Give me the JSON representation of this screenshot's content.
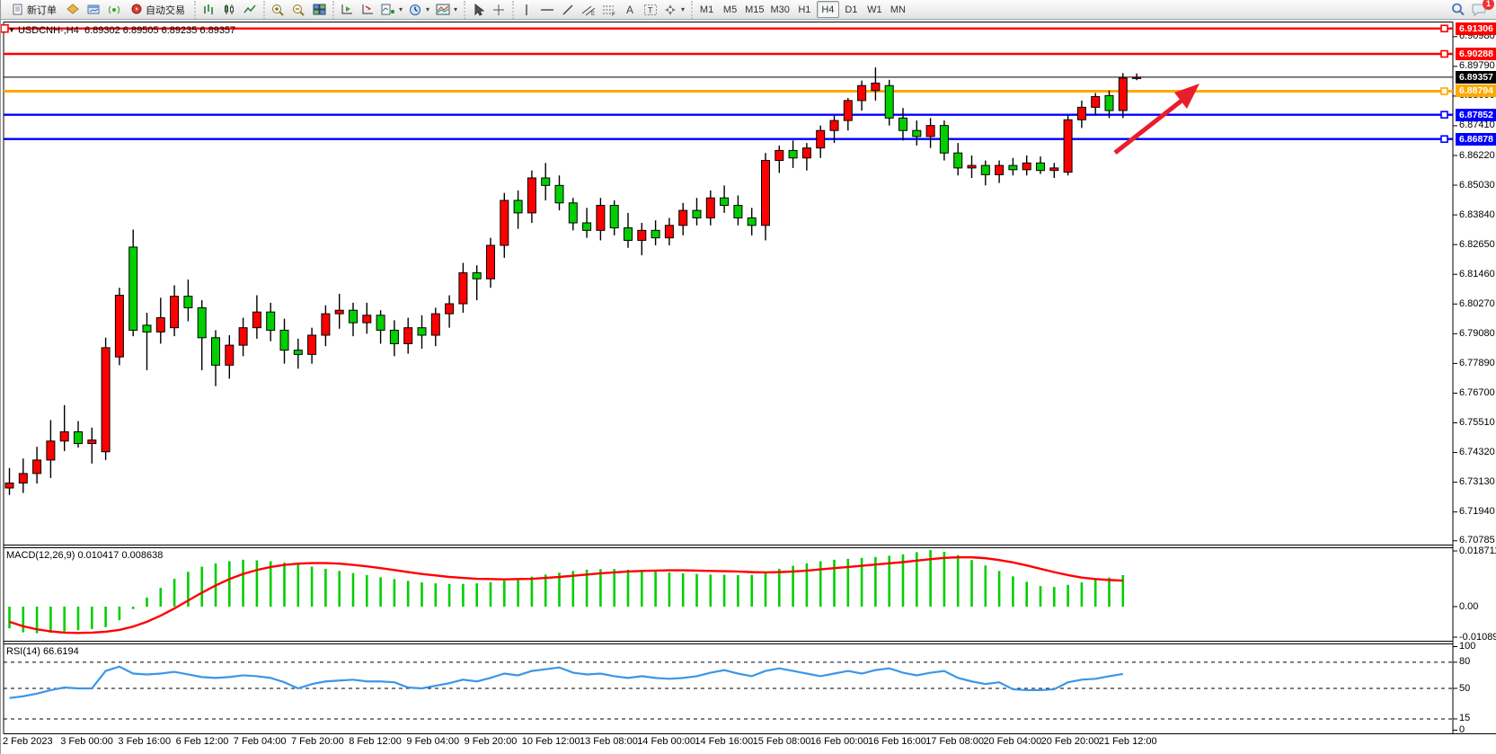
{
  "toolbar": {
    "new_order_label": "新订单",
    "autotrade_label": "自动交易",
    "icons": [
      "new-order-icon",
      "market-watch-icon",
      "chart-window-icon",
      "signal-icon",
      "autotrade-icon",
      "bar-chart-icon",
      "candlestick-icon",
      "line-chart-icon",
      "zoom-in-icon",
      "zoom-out-icon",
      "tile-windows-icon",
      "auto-scroll-icon",
      "chart-shift-icon",
      "indicators-icon",
      "periods-icon",
      "templates-icon",
      "cursor-icon",
      "crosshair-icon",
      "vertical-line-icon",
      "horizontal-line-icon",
      "trendline-icon",
      "channel-icon",
      "fibonacci-icon",
      "text-icon",
      "text-label-icon",
      "arrows-icon",
      "search-icon",
      "chat-icon"
    ],
    "timeframes": [
      {
        "label": "M1",
        "active": false
      },
      {
        "label": "M5",
        "active": false
      },
      {
        "label": "M15",
        "active": false
      },
      {
        "label": "M30",
        "active": false
      },
      {
        "label": "H1",
        "active": false
      },
      {
        "label": "H4",
        "active": true
      },
      {
        "label": "D1",
        "active": false
      },
      {
        "label": "W1",
        "active": false
      },
      {
        "label": "MN",
        "active": false
      }
    ],
    "notification_badge": "1"
  },
  "chart": {
    "title": {
      "symbol": "USDCNH-,H4",
      "quotes": "6.89302 6.89505 6.89235 6.89357"
    },
    "price_axis": {
      "ticks": [
        "6.90980",
        "6.89790",
        "6.88600",
        "6.87410",
        "6.86220",
        "6.85030",
        "6.83840",
        "6.82650",
        "6.81460",
        "6.80270",
        "6.79080",
        "6.77890",
        "6.76700",
        "6.75510",
        "6.74320",
        "6.73130",
        "6.71940",
        "6.70785"
      ],
      "tags": [
        {
          "value": "6.91306",
          "color": "#ff0000",
          "kind": "resistance-line"
        },
        {
          "value": "6.90288",
          "color": "#ff0000",
          "kind": "resistance-line"
        },
        {
          "value": "6.89357",
          "color": "#000000",
          "kind": "current-bid"
        },
        {
          "value": "6.88794",
          "color": "#ffa800",
          "kind": "pivot-line"
        },
        {
          "value": "6.87852",
          "color": "#0000ff",
          "kind": "support-line"
        },
        {
          "value": "6.86878",
          "color": "#0000ff",
          "kind": "support-line"
        }
      ]
    },
    "hlines": [
      {
        "price": 6.91306,
        "color": "#ff0000",
        "width": 2.4,
        "marker": true,
        "left_marker": true
      },
      {
        "price": 6.90288,
        "color": "#ff0000",
        "width": 2.4,
        "marker": true,
        "left_marker": false
      },
      {
        "price": 6.89357,
        "color": "#000000",
        "width": 1,
        "marker": false,
        "left_marker": false
      },
      {
        "price": 6.88794,
        "color": "#ffa800",
        "width": 3,
        "marker": true,
        "left_marker": false
      },
      {
        "price": 6.87852,
        "color": "#0000ff",
        "width": 2.4,
        "marker": true,
        "left_marker": false
      },
      {
        "price": 6.86878,
        "color": "#0000ff",
        "width": 2.4,
        "marker": true,
        "left_marker": false
      }
    ],
    "annotation": {
      "type": "trend-arrow",
      "direction": "up-right",
      "color": "#e81e2d"
    },
    "colors": {
      "bull": "#ff0000",
      "bear": "#00cf00",
      "outline": "#000000",
      "macd_hist": "#00cf00",
      "macd_signal": "#ff0000",
      "rsi_line": "#3c96e8"
    },
    "candles": [
      [
        6.729,
        6.737,
        6.7262,
        6.731
      ],
      [
        6.731,
        6.7408,
        6.727,
        6.7348
      ],
      [
        6.7348,
        6.7455,
        6.7308,
        6.7402
      ],
      [
        6.7402,
        6.7562,
        6.733,
        6.7478
      ],
      [
        6.7478,
        6.7622,
        6.7438,
        6.7515
      ],
      [
        6.7515,
        6.7558,
        6.7452,
        6.7468
      ],
      [
        6.7468,
        6.7532,
        6.7388,
        6.7482
      ],
      [
        6.7435,
        6.7892,
        6.7402,
        6.7852
      ],
      [
        6.7815,
        6.8092,
        6.7782,
        6.8062
      ],
      [
        6.8255,
        6.8325,
        6.7898,
        6.7922
      ],
      [
        6.7942,
        6.7992,
        6.7762,
        6.7915
      ],
      [
        6.7915,
        6.8052,
        6.7868,
        6.7972
      ],
      [
        6.7932,
        6.8102,
        6.7898,
        6.8058
      ],
      [
        6.8058,
        6.8125,
        6.7958,
        6.8012
      ],
      [
        6.8012,
        6.8042,
        6.7762,
        6.7892
      ],
      [
        6.7892,
        6.7922,
        6.7698,
        6.7782
      ],
      [
        6.7782,
        6.7902,
        6.7728,
        6.7862
      ],
      [
        6.7862,
        6.7972,
        6.7818,
        6.7932
      ],
      [
        6.7932,
        6.8062,
        6.7888,
        6.7995
      ],
      [
        6.7995,
        6.8032,
        6.7878,
        6.7922
      ],
      [
        6.7922,
        6.7968,
        6.7788,
        6.7842
      ],
      [
        6.7842,
        6.7888,
        6.7768,
        6.7825
      ],
      [
        6.7825,
        6.7932,
        6.7788,
        6.7902
      ],
      [
        6.7902,
        6.8022,
        6.7858,
        6.7988
      ],
      [
        6.7988,
        6.8068,
        6.7928,
        6.8002
      ],
      [
        6.8002,
        6.8032,
        6.7898,
        6.7952
      ],
      [
        6.7952,
        6.8032,
        6.7908,
        6.7982
      ],
      [
        6.7982,
        6.8002,
        6.7868,
        6.7922
      ],
      [
        6.7922,
        6.7962,
        6.7818,
        6.7868
      ],
      [
        6.7868,
        6.7972,
        6.7828,
        6.7932
      ],
      [
        6.7932,
        6.7982,
        6.7848,
        6.7902
      ],
      [
        6.7902,
        6.8012,
        6.7858,
        6.7988
      ],
      [
        6.7988,
        6.8062,
        6.7932,
        6.8028
      ],
      [
        6.8028,
        6.8192,
        6.7992,
        6.8152
      ],
      [
        6.8152,
        6.8182,
        6.8042,
        6.8128
      ],
      [
        6.8128,
        6.8292,
        6.8092,
        6.8262
      ],
      [
        6.8262,
        6.8472,
        6.8212,
        6.8442
      ],
      [
        6.8442,
        6.8482,
        6.8328,
        6.8392
      ],
      [
        6.8392,
        6.8562,
        6.8352,
        6.8532
      ],
      [
        6.8532,
        6.8592,
        6.8442,
        6.8502
      ],
      [
        6.8502,
        6.8542,
        6.8402,
        6.8432
      ],
      [
        6.8432,
        6.8452,
        6.8322,
        6.8352
      ],
      [
        6.8352,
        6.8412,
        6.8292,
        6.8322
      ],
      [
        6.8322,
        6.8452,
        6.8282,
        6.8422
      ],
      [
        6.8422,
        6.8442,
        6.8302,
        6.8332
      ],
      [
        6.8332,
        6.8392,
        6.8252,
        6.8282
      ],
      [
        6.8282,
        6.8352,
        6.8222,
        6.8322
      ],
      [
        6.8322,
        6.8362,
        6.8262,
        6.8292
      ],
      [
        6.8292,
        6.8372,
        6.8262,
        6.8342
      ],
      [
        6.8342,
        6.8432,
        6.8302,
        6.8402
      ],
      [
        6.8402,
        6.8452,
        6.8342,
        6.8372
      ],
      [
        6.8372,
        6.8482,
        6.8342,
        6.8452
      ],
      [
        6.8452,
        6.8502,
        6.8392,
        6.8422
      ],
      [
        6.8422,
        6.8462,
        6.8342,
        6.8372
      ],
      [
        6.8372,
        6.8412,
        6.8302,
        6.8342
      ],
      [
        6.8342,
        6.8632,
        6.8282,
        6.8602
      ],
      [
        6.8602,
        6.8662,
        6.8552,
        6.8642
      ],
      [
        6.8642,
        6.8682,
        6.8572,
        6.8612
      ],
      [
        6.8612,
        6.8672,
        6.8562,
        6.8652
      ],
      [
        6.8652,
        6.8742,
        6.8612,
        6.8722
      ],
      [
        6.8722,
        6.8782,
        6.8672,
        6.8762
      ],
      [
        6.8762,
        6.8852,
        6.8722,
        6.8842
      ],
      [
        6.8842,
        6.8922,
        6.8802,
        6.8902
      ],
      [
        6.8882,
        6.8975,
        6.8842,
        6.8912
      ],
      [
        6.8902,
        6.8925,
        6.8742,
        6.8772
      ],
      [
        6.8772,
        6.8812,
        6.8682,
        6.8722
      ],
      [
        6.8722,
        6.8762,
        6.8662,
        6.8698
      ],
      [
        6.8698,
        6.8772,
        6.8652,
        6.8742
      ],
      [
        6.8742,
        6.8762,
        6.8602,
        6.8632
      ],
      [
        6.8632,
        6.8672,
        6.8542,
        6.8572
      ],
      [
        6.8572,
        6.8622,
        6.8532,
        6.8582
      ],
      [
        6.8582,
        6.8602,
        6.8502,
        6.8545
      ],
      [
        6.8545,
        6.8602,
        6.8512,
        6.8582
      ],
      [
        6.8582,
        6.8612,
        6.8542,
        6.8565
      ],
      [
        6.8565,
        6.8622,
        6.8542,
        6.8592
      ],
      [
        6.8592,
        6.8618,
        6.8548,
        6.8562
      ],
      [
        6.8562,
        6.8592,
        6.8532,
        6.8572
      ],
      [
        6.8555,
        6.8782,
        6.8542,
        6.8765
      ],
      [
        6.8765,
        6.8842,
        6.8732,
        6.8815
      ],
      [
        6.8815,
        6.8872,
        6.8782,
        6.8858
      ],
      [
        6.8862,
        6.8882,
        6.8772,
        6.8802
      ],
      [
        6.8802,
        6.8952,
        6.8772,
        6.8932
      ],
      [
        6.89302,
        6.89505,
        6.89235,
        6.89357
      ]
    ]
  },
  "macd": {
    "label": "MACD(12,26,9)",
    "value_main": "0.010417",
    "value_signal": "0.008638",
    "axis": [
      "0.018711",
      "0.00",
      "-0.010896"
    ],
    "histogram": [
      -0.0072,
      -0.0085,
      -0.0088,
      -0.0086,
      -0.0082,
      -0.0078,
      -0.0074,
      -0.0068,
      -0.0045,
      -0.0008,
      0.003,
      0.0062,
      0.0092,
      0.0115,
      0.0132,
      0.0143,
      0.015,
      0.0155,
      0.0153,
      0.015,
      0.0145,
      0.0139,
      0.0132,
      0.0125,
      0.0118,
      0.0111,
      0.0104,
      0.0097,
      0.0091,
      0.0085,
      0.008,
      0.0077,
      0.0075,
      0.0075,
      0.0077,
      0.0081,
      0.0086,
      0.0092,
      0.0099,
      0.0106,
      0.0112,
      0.0118,
      0.0122,
      0.0124,
      0.0124,
      0.0122,
      0.0119,
      0.0116,
      0.0113,
      0.011,
      0.0108,
      0.0106,
      0.0105,
      0.0104,
      0.0105,
      0.011,
      0.0125,
      0.0135,
      0.0143,
      0.015,
      0.0155,
      0.0158,
      0.0161,
      0.0164,
      0.0168,
      0.0173,
      0.018,
      0.0187,
      0.0181,
      0.017,
      0.0154,
      0.0136,
      0.0118,
      0.01,
      0.0082,
      0.0068,
      0.0065,
      0.0072,
      0.008,
      0.0088,
      0.0096,
      0.0104
    ],
    "signal": [
      -0.005,
      -0.0065,
      -0.0075,
      -0.0082,
      -0.0086,
      -0.0087,
      -0.0086,
      -0.0083,
      -0.0077,
      -0.0066,
      -0.005,
      -0.003,
      -0.0006,
      0.002,
      0.0046,
      0.007,
      0.0091,
      0.0108,
      0.0121,
      0.0131,
      0.0138,
      0.0142,
      0.0144,
      0.0144,
      0.0142,
      0.0138,
      0.0133,
      0.0127,
      0.0121,
      0.0114,
      0.0108,
      0.0103,
      0.0098,
      0.0095,
      0.0092,
      0.0091,
      0.009,
      0.0091,
      0.0092,
      0.0095,
      0.0098,
      0.0102,
      0.0106,
      0.011,
      0.0113,
      0.0116,
      0.0118,
      0.0119,
      0.012,
      0.012,
      0.0119,
      0.0118,
      0.0117,
      0.0116,
      0.0114,
      0.0113,
      0.0114,
      0.0116,
      0.0119,
      0.0123,
      0.0127,
      0.0131,
      0.0135,
      0.0139,
      0.0143,
      0.0147,
      0.0152,
      0.0157,
      0.0161,
      0.0163,
      0.0163,
      0.016,
      0.0154,
      0.0146,
      0.0136,
      0.0125,
      0.0114,
      0.0104,
      0.0096,
      0.0091,
      0.0088,
      0.0086
    ]
  },
  "rsi": {
    "label": "RSI(14)",
    "value": "66.6194",
    "axis": [
      "100",
      "80",
      "50",
      "15",
      "0"
    ],
    "levels": [
      80,
      50,
      15
    ],
    "series": [
      39,
      41,
      44,
      48,
      51,
      50,
      50,
      70,
      75,
      67,
      66,
      67,
      69,
      66,
      63,
      62,
      63,
      65,
      64,
      62,
      57,
      50,
      55,
      58,
      59,
      60,
      58,
      58,
      57,
      51,
      50,
      53,
      56,
      60,
      58,
      62,
      67,
      65,
      70,
      72,
      74,
      68,
      66,
      67,
      64,
      62,
      64,
      62,
      61,
      62,
      64,
      68,
      71,
      67,
      64,
      70,
      73,
      70,
      67,
      64,
      67,
      70,
      67,
      71,
      73,
      68,
      65,
      68,
      70,
      62,
      58,
      55,
      57,
      49,
      48,
      48,
      49,
      57,
      60,
      61,
      64,
      66.6
    ]
  },
  "date_axis": {
    "labels": [
      "2 Feb 2023",
      "3 Feb 00:00",
      "3 Feb 16:00",
      "6 Feb 12:00",
      "7 Feb 04:00",
      "7 Feb 20:00",
      "8 Feb 12:00",
      "9 Feb 04:00",
      "9 Feb 20:00",
      "10 Feb 12:00",
      "13 Feb 08:00",
      "14 Feb 00:00",
      "14 Feb 16:00",
      "15 Feb 08:00",
      "16 Feb 00:00",
      "16 Feb 16:00",
      "17 Feb 08:00",
      "20 Feb 04:00",
      "20 Feb 20:00",
      "21 Feb 12:00"
    ]
  }
}
